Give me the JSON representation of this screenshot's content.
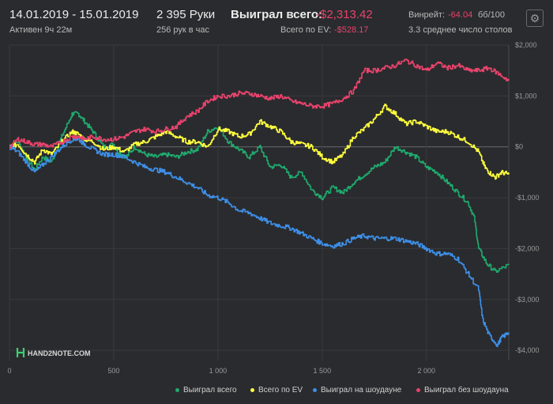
{
  "header": {
    "date_range": "14.01.2019 - 15.01.2019",
    "active": "Активен 9ч 22м",
    "hands": "2 395 Руки",
    "hands_per_hour": "256 рук в час",
    "won_label": "Выиграл всего:",
    "won_value": "-$2,313.42",
    "ev_label": "Всего по EV:",
    "ev_value": "-$528.17",
    "winrate_label": "Винрейт:",
    "winrate_value": "-64.04",
    "winrate_unit": "бб/100",
    "tables": "3.3 среднее число столов"
  },
  "settings_icon": "gear-icon",
  "logo_text": "HAND2NOTE.COM",
  "chart_data": {
    "type": "line",
    "xlim": [
      0,
      2395
    ],
    "ylim": [
      -4200,
      2000
    ],
    "x_ticks": [
      0,
      500,
      1000,
      1500,
      2000
    ],
    "x_tick_labels": [
      "0",
      "500",
      "1 000",
      "1 500",
      "2 000"
    ],
    "y_ticks": [
      2000,
      1000,
      0,
      -1000,
      -2000,
      -3000,
      -4000
    ],
    "y_tick_labels": [
      "$2,000",
      "$1,000",
      "$0",
      "-$1,000",
      "-$2,000",
      "-$3,000",
      "-$4,000"
    ],
    "series": [
      {
        "name": "Выиграл всего",
        "color": "#1faa6e",
        "points": [
          [
            0,
            0
          ],
          [
            40,
            100
          ],
          [
            80,
            -200
          ],
          [
            120,
            -450
          ],
          [
            160,
            -200
          ],
          [
            200,
            -300
          ],
          [
            250,
            200
          ],
          [
            300,
            650
          ],
          [
            330,
            650
          ],
          [
            360,
            500
          ],
          [
            400,
            300
          ],
          [
            450,
            0
          ],
          [
            500,
            50
          ],
          [
            520,
            -100
          ],
          [
            560,
            -200
          ],
          [
            600,
            0
          ],
          [
            650,
            -150
          ],
          [
            700,
            -200
          ],
          [
            750,
            -150
          ],
          [
            800,
            -200
          ],
          [
            850,
            -100
          ],
          [
            900,
            -50
          ],
          [
            950,
            300
          ],
          [
            1000,
            400
          ],
          [
            1050,
            100
          ],
          [
            1100,
            -50
          ],
          [
            1150,
            -200
          ],
          [
            1200,
            0
          ],
          [
            1250,
            -400
          ],
          [
            1300,
            -350
          ],
          [
            1350,
            -600
          ],
          [
            1400,
            -500
          ],
          [
            1450,
            -850
          ],
          [
            1500,
            -1000
          ],
          [
            1550,
            -800
          ],
          [
            1600,
            -900
          ],
          [
            1650,
            -700
          ],
          [
            1700,
            -550
          ],
          [
            1750,
            -400
          ],
          [
            1800,
            -300
          ],
          [
            1850,
            0
          ],
          [
            1900,
            -100
          ],
          [
            1950,
            -200
          ],
          [
            2000,
            -400
          ],
          [
            2050,
            -500
          ],
          [
            2100,
            -700
          ],
          [
            2150,
            -900
          ],
          [
            2200,
            -1100
          ],
          [
            2230,
            -1400
          ],
          [
            2250,
            -2000
          ],
          [
            2290,
            -2300
          ],
          [
            2330,
            -2450
          ],
          [
            2395,
            -2320
          ]
        ]
      },
      {
        "name": "Всего по EV",
        "color": "#ffff3d",
        "points": [
          [
            0,
            0
          ],
          [
            40,
            50
          ],
          [
            80,
            -150
          ],
          [
            120,
            -300
          ],
          [
            160,
            -50
          ],
          [
            200,
            -150
          ],
          [
            250,
            100
          ],
          [
            300,
            300
          ],
          [
            330,
            250
          ],
          [
            360,
            150
          ],
          [
            400,
            100
          ],
          [
            450,
            -50
          ],
          [
            500,
            0
          ],
          [
            550,
            -100
          ],
          [
            600,
            50
          ],
          [
            650,
            100
          ],
          [
            700,
            200
          ],
          [
            750,
            300
          ],
          [
            800,
            200
          ],
          [
            850,
            100
          ],
          [
            900,
            100
          ],
          [
            950,
            0
          ],
          [
            1000,
            350
          ],
          [
            1050,
            300
          ],
          [
            1100,
            200
          ],
          [
            1150,
            250
          ],
          [
            1200,
            500
          ],
          [
            1250,
            400
          ],
          [
            1300,
            300
          ],
          [
            1350,
            100
          ],
          [
            1400,
            50
          ],
          [
            1450,
            0
          ],
          [
            1500,
            -200
          ],
          [
            1550,
            -300
          ],
          [
            1600,
            -150
          ],
          [
            1650,
            200
          ],
          [
            1700,
            350
          ],
          [
            1750,
            550
          ],
          [
            1800,
            800
          ],
          [
            1850,
            650
          ],
          [
            1900,
            450
          ],
          [
            1950,
            500
          ],
          [
            2000,
            400
          ],
          [
            2050,
            300
          ],
          [
            2100,
            300
          ],
          [
            2150,
            200
          ],
          [
            2200,
            100
          ],
          [
            2250,
            -100
          ],
          [
            2280,
            -400
          ],
          [
            2300,
            -500
          ],
          [
            2330,
            -600
          ],
          [
            2360,
            -500
          ],
          [
            2395,
            -540
          ]
        ]
      },
      {
        "name": "Выиграл на шоудауне",
        "color": "#3d8fe8",
        "points": [
          [
            0,
            0
          ],
          [
            40,
            -100
          ],
          [
            80,
            -300
          ],
          [
            120,
            -500
          ],
          [
            160,
            -350
          ],
          [
            200,
            -200
          ],
          [
            250,
            0
          ],
          [
            300,
            150
          ],
          [
            330,
            150
          ],
          [
            360,
            50
          ],
          [
            400,
            -50
          ],
          [
            450,
            -150
          ],
          [
            500,
            -150
          ],
          [
            550,
            -200
          ],
          [
            600,
            -300
          ],
          [
            650,
            -400
          ],
          [
            700,
            -450
          ],
          [
            750,
            -500
          ],
          [
            800,
            -600
          ],
          [
            850,
            -700
          ],
          [
            900,
            -800
          ],
          [
            950,
            -950
          ],
          [
            1000,
            -1000
          ],
          [
            1050,
            -1100
          ],
          [
            1100,
            -1250
          ],
          [
            1150,
            -1300
          ],
          [
            1200,
            -1400
          ],
          [
            1250,
            -1500
          ],
          [
            1300,
            -1550
          ],
          [
            1350,
            -1600
          ],
          [
            1400,
            -1700
          ],
          [
            1450,
            -1800
          ],
          [
            1500,
            -1900
          ],
          [
            1550,
            -1950
          ],
          [
            1600,
            -1900
          ],
          [
            1650,
            -1800
          ],
          [
            1700,
            -1750
          ],
          [
            1750,
            -1800
          ],
          [
            1800,
            -1800
          ],
          [
            1850,
            -1800
          ],
          [
            1900,
            -1850
          ],
          [
            1950,
            -1900
          ],
          [
            2000,
            -2000
          ],
          [
            2050,
            -2100
          ],
          [
            2100,
            -2100
          ],
          [
            2150,
            -2200
          ],
          [
            2200,
            -2500
          ],
          [
            2250,
            -2800
          ],
          [
            2270,
            -3400
          ],
          [
            2300,
            -3700
          ],
          [
            2340,
            -3900
          ],
          [
            2360,
            -3750
          ],
          [
            2395,
            -3650
          ]
        ]
      },
      {
        "name": "Выиграл без шоудауна",
        "color": "#e8436c",
        "points": [
          [
            0,
            0
          ],
          [
            40,
            150
          ],
          [
            80,
            100
          ],
          [
            120,
            50
          ],
          [
            160,
            50
          ],
          [
            200,
            0
          ],
          [
            250,
            100
          ],
          [
            300,
            200
          ],
          [
            330,
            200
          ],
          [
            360,
            150
          ],
          [
            400,
            200
          ],
          [
            450,
            150
          ],
          [
            500,
            150
          ],
          [
            550,
            200
          ],
          [
            600,
            300
          ],
          [
            650,
            350
          ],
          [
            700,
            300
          ],
          [
            750,
            350
          ],
          [
            800,
            400
          ],
          [
            850,
            600
          ],
          [
            900,
            700
          ],
          [
            950,
            900
          ],
          [
            1000,
            1000
          ],
          [
            1050,
            1000
          ],
          [
            1100,
            1050
          ],
          [
            1150,
            1050
          ],
          [
            1200,
            1000
          ],
          [
            1250,
            950
          ],
          [
            1300,
            1000
          ],
          [
            1350,
            900
          ],
          [
            1400,
            850
          ],
          [
            1450,
            800
          ],
          [
            1500,
            800
          ],
          [
            1550,
            850
          ],
          [
            1600,
            950
          ],
          [
            1650,
            1100
          ],
          [
            1700,
            1500
          ],
          [
            1750,
            1500
          ],
          [
            1800,
            1550
          ],
          [
            1850,
            1600
          ],
          [
            1900,
            1700
          ],
          [
            1950,
            1600
          ],
          [
            2000,
            1500
          ],
          [
            2050,
            1650
          ],
          [
            2100,
            1550
          ],
          [
            2150,
            1600
          ],
          [
            2200,
            1500
          ],
          [
            2250,
            1500
          ],
          [
            2300,
            1550
          ],
          [
            2340,
            1450
          ],
          [
            2395,
            1300
          ]
        ]
      }
    ]
  }
}
